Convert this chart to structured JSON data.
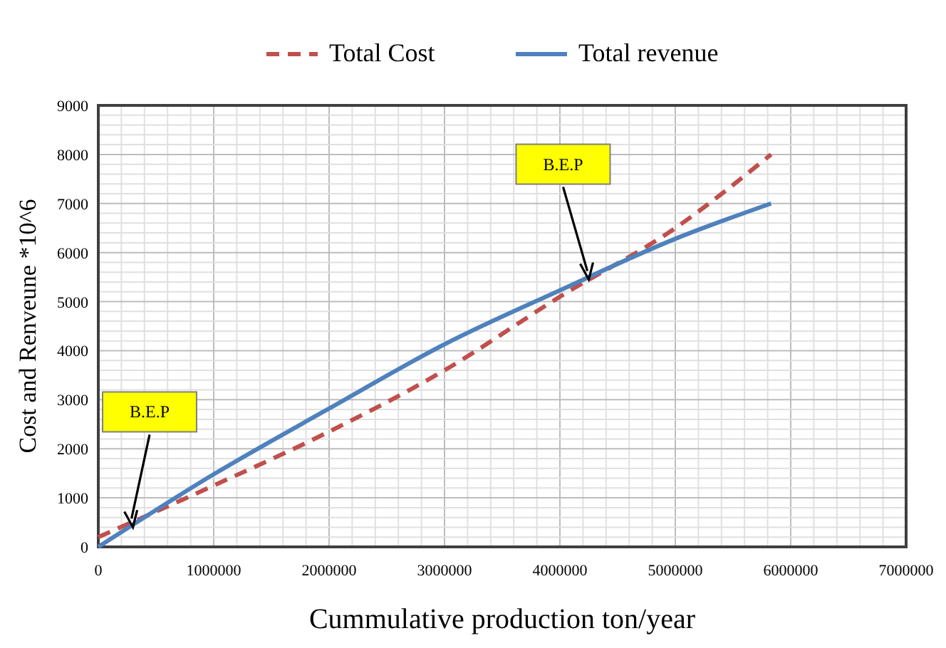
{
  "chart_data": {
    "type": "line",
    "xlabel": "Cummulative production ton/year",
    "ylabel": "Cost and Renveune *10^6",
    "xlim": [
      0,
      7000000
    ],
    "ylim": [
      0,
      9000
    ],
    "xticks": [
      0,
      {
        "value": 200000,
        "label": null
      },
      {
        "value": 400000,
        "label": null
      },
      {
        "value": 600000,
        "label": null
      },
      {
        "value": 800000,
        "label": null
      },
      1000000,
      {
        "value": 1200000,
        "label": null
      },
      {
        "value": 1400000,
        "label": null
      },
      {
        "value": 1600000,
        "label": null
      },
      {
        "value": 1800000,
        "label": null
      },
      2000000,
      {
        "value": 2200000,
        "label": null
      },
      {
        "value": 2400000,
        "label": null
      },
      {
        "value": 2600000,
        "label": null
      },
      {
        "value": 2800000,
        "label": null
      },
      3000000,
      {
        "value": 3200000,
        "label": null
      },
      {
        "value": 3400000,
        "label": null
      },
      {
        "value": 3600000,
        "label": null
      },
      {
        "value": 3800000,
        "label": null
      },
      4000000,
      {
        "value": 4200000,
        "label": null
      },
      {
        "value": 4400000,
        "label": null
      },
      {
        "value": 4600000,
        "label": null
      },
      {
        "value": 4800000,
        "label": null
      },
      5000000,
      {
        "value": 5200000,
        "label": null
      },
      {
        "value": 5400000,
        "label": null
      },
      {
        "value": 5600000,
        "label": null
      },
      {
        "value": 5800000,
        "label": null
      },
      6000000,
      {
        "value": 6200000,
        "label": null
      },
      {
        "value": 6400000,
        "label": null
      },
      {
        "value": 6600000,
        "label": null
      },
      {
        "value": 6800000,
        "label": null
      },
      7000000
    ],
    "yticks": [
      0,
      {
        "value": 200,
        "label": null
      },
      {
        "value": 400,
        "label": null
      },
      {
        "value": 600,
        "label": null
      },
      {
        "value": 800,
        "label": null
      },
      1000,
      {
        "value": 1200,
        "label": null
      },
      {
        "value": 1400,
        "label": null
      },
      {
        "value": 1600,
        "label": null
      },
      {
        "value": 1800,
        "label": null
      },
      2000,
      {
        "value": 2200,
        "label": null
      },
      {
        "value": 2400,
        "label": null
      },
      {
        "value": 2600,
        "label": null
      },
      {
        "value": 2800,
        "label": null
      },
      3000,
      {
        "value": 3200,
        "label": null
      },
      {
        "value": 3400,
        "label": null
      },
      {
        "value": 3600,
        "label": null
      },
      {
        "value": 3800,
        "label": null
      },
      4000,
      {
        "value": 4200,
        "label": null
      },
      {
        "value": 4400,
        "label": null
      },
      {
        "value": 4600,
        "label": null
      },
      {
        "value": 4800,
        "label": null
      },
      5000,
      {
        "value": 5200,
        "label": null
      },
      {
        "value": 5400,
        "label": null
      },
      {
        "value": 5600,
        "label": null
      },
      {
        "value": 5800,
        "label": null
      },
      6000,
      {
        "value": 6200,
        "label": null
      },
      {
        "value": 6400,
        "label": null
      },
      {
        "value": 6600,
        "label": null
      },
      {
        "value": 6800,
        "label": null
      },
      7000,
      {
        "value": 7200,
        "label": null
      },
      {
        "value": 7400,
        "label": null
      },
      {
        "value": 7600,
        "label": null
      },
      {
        "value": 7800,
        "label": null
      },
      8000,
      {
        "value": 8200,
        "label": null
      },
      {
        "value": 8400,
        "label": null
      },
      {
        "value": 8600,
        "label": null
      },
      {
        "value": 8800,
        "label": null
      },
      9000
    ],
    "grid": true,
    "legend": "top",
    "marker": "none",
    "series": [
      {
        "name": "Total Cost",
        "color": "#c0504d",
        "line_style": "dashed",
        "x": [
          0,
          1000000,
          2000000,
          3000000,
          4000000,
          5000000,
          5830000
        ],
        "values": [
          200,
          1250,
          2350,
          3600,
          5100,
          6500,
          8000
        ]
      },
      {
        "name": "Total revenue",
        "color": "#4f81bd",
        "line_style": "solid",
        "x": [
          0,
          1000000,
          2000000,
          3000000,
          4000000,
          5000000,
          5830000
        ],
        "values": [
          0,
          1480,
          2820,
          4130,
          5230,
          6280,
          7000
        ]
      }
    ],
    "annotations": [
      {
        "text": "B.E.P",
        "x": 300000,
        "y": 400
      },
      {
        "text": "B.E.P",
        "x": 4250000,
        "y": 5450
      }
    ]
  }
}
